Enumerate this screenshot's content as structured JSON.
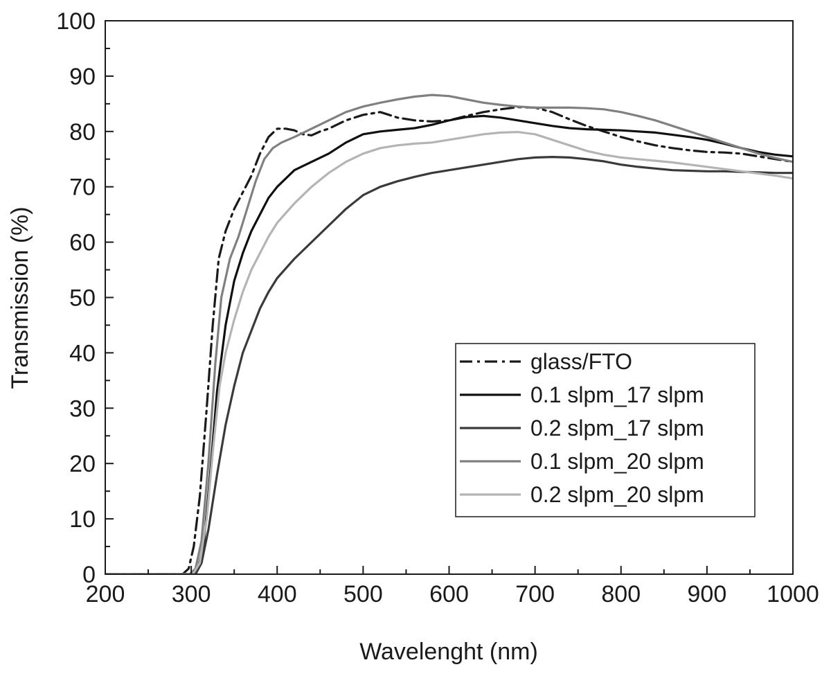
{
  "chart_data": {
    "type": "line",
    "title": "",
    "xlabel": "Wavelenght (nm)",
    "ylabel": "Transmission (%)",
    "xlim": [
      200,
      1000
    ],
    "ylim": [
      0,
      100
    ],
    "x_ticks": [
      200,
      300,
      400,
      500,
      600,
      700,
      800,
      900,
      1000
    ],
    "y_ticks": [
      0,
      10,
      20,
      30,
      40,
      50,
      60,
      70,
      80,
      90,
      100
    ],
    "grid": false,
    "legend_position": "lower-right",
    "series": [
      {
        "name": "glass/FTO",
        "color": "#1a1a1a",
        "dash": "dash-dot",
        "x": [
          200,
          290,
          297,
          303,
          310,
          318,
          325,
          332,
          340,
          350,
          360,
          370,
          380,
          390,
          400,
          410,
          420,
          430,
          440,
          450,
          460,
          480,
          500,
          520,
          540,
          560,
          580,
          600,
          620,
          640,
          660,
          680,
          700,
          720,
          740,
          760,
          780,
          800,
          820,
          840,
          860,
          880,
          900,
          920,
          940,
          960,
          980,
          1000
        ],
        "y": [
          0,
          0,
          1,
          5,
          14,
          30,
          45,
          57,
          62,
          66,
          69,
          72,
          76,
          79,
          80.5,
          80.5,
          80.2,
          79.5,
          79.3,
          80,
          80.5,
          82,
          83,
          83.5,
          82.5,
          82,
          81.8,
          82,
          82.8,
          83.5,
          84,
          84.4,
          84.3,
          83.5,
          82.2,
          81,
          80,
          79,
          78.2,
          77.5,
          77,
          76.6,
          76.3,
          76.2,
          76,
          75.5,
          75,
          74.5
        ]
      },
      {
        "name": "0.1 slpm_17 slpm",
        "color": "#101010",
        "dash": "solid",
        "x": [
          200,
          300,
          308,
          315,
          322,
          330,
          340,
          350,
          360,
          370,
          380,
          390,
          400,
          420,
          440,
          460,
          480,
          500,
          520,
          540,
          560,
          580,
          600,
          620,
          640,
          660,
          680,
          700,
          720,
          740,
          760,
          780,
          800,
          820,
          840,
          860,
          880,
          900,
          920,
          940,
          960,
          980,
          1000
        ],
        "y": [
          0,
          0,
          1,
          6,
          18,
          33,
          45,
          53,
          58,
          62,
          65,
          68,
          70,
          73,
          74.5,
          76,
          78,
          79.5,
          80,
          80.3,
          80.6,
          81.2,
          82,
          82.6,
          82.8,
          82.5,
          82,
          81.5,
          81,
          80.6,
          80.4,
          80.3,
          80.2,
          80,
          79.8,
          79.4,
          79,
          78.5,
          77.8,
          77,
          76.3,
          75.8,
          75.5
        ]
      },
      {
        "name": "0.2 slpm_17 slpm",
        "color": "#3a3a3a",
        "dash": "solid",
        "x": [
          200,
          305,
          312,
          320,
          330,
          340,
          350,
          360,
          370,
          380,
          390,
          400,
          420,
          440,
          460,
          480,
          500,
          520,
          540,
          560,
          580,
          600,
          620,
          640,
          660,
          680,
          700,
          720,
          740,
          760,
          780,
          800,
          820,
          840,
          860,
          880,
          900,
          920,
          940,
          960,
          980,
          1000
        ],
        "y": [
          0,
          0,
          2,
          8,
          18,
          27,
          34,
          40,
          44,
          48,
          51,
          53.5,
          57,
          60,
          63,
          66,
          68.5,
          70,
          71,
          71.8,
          72.5,
          73,
          73.5,
          74,
          74.5,
          75,
          75.3,
          75.4,
          75.3,
          75,
          74.6,
          74,
          73.6,
          73.3,
          73,
          72.9,
          72.8,
          72.8,
          72.7,
          72.6,
          72.5,
          72.5
        ]
      },
      {
        "name": "0.1 slpm_20 slpm",
        "color": "#808080",
        "dash": "solid",
        "x": [
          200,
          298,
          305,
          312,
          320,
          328,
          335,
          345,
          355,
          365,
          375,
          385,
          395,
          405,
          420,
          440,
          460,
          480,
          500,
          520,
          540,
          560,
          580,
          600,
          620,
          640,
          660,
          680,
          700,
          720,
          740,
          760,
          780,
          800,
          820,
          840,
          860,
          880,
          900,
          920,
          940,
          960,
          980,
          1000
        ],
        "y": [
          0,
          0,
          1,
          6,
          20,
          38,
          50,
          57,
          61,
          66,
          71,
          75,
          77,
          78,
          79,
          80.5,
          82,
          83.5,
          84.5,
          85.2,
          85.8,
          86.3,
          86.6,
          86.4,
          85.8,
          85.2,
          84.8,
          84.5,
          84.3,
          84.3,
          84.3,
          84.2,
          84,
          83.5,
          82.8,
          82,
          81,
          80,
          79,
          78,
          77,
          76,
          75.2,
          74.5
        ]
      },
      {
        "name": "0.2 slpm_20 slpm",
        "color": "#b4b4b4",
        "dash": "solid",
        "x": [
          200,
          302,
          310,
          318,
          325,
          333,
          340,
          350,
          360,
          370,
          380,
          390,
          400,
          420,
          440,
          460,
          480,
          500,
          520,
          540,
          560,
          580,
          600,
          620,
          640,
          660,
          680,
          700,
          720,
          740,
          760,
          780,
          800,
          820,
          840,
          860,
          880,
          900,
          920,
          940,
          960,
          980,
          1000
        ],
        "y": [
          0,
          0,
          2,
          10,
          22,
          34,
          40,
          46,
          51,
          55,
          58,
          61,
          63.5,
          67,
          70,
          72.5,
          74.5,
          76,
          77,
          77.5,
          77.8,
          78,
          78.5,
          79,
          79.5,
          79.8,
          79.9,
          79.5,
          78.5,
          77.5,
          76.5,
          75.8,
          75.3,
          75,
          74.7,
          74.4,
          74,
          73.6,
          73.2,
          72.8,
          72.4,
          72,
          71.5
        ]
      }
    ]
  }
}
